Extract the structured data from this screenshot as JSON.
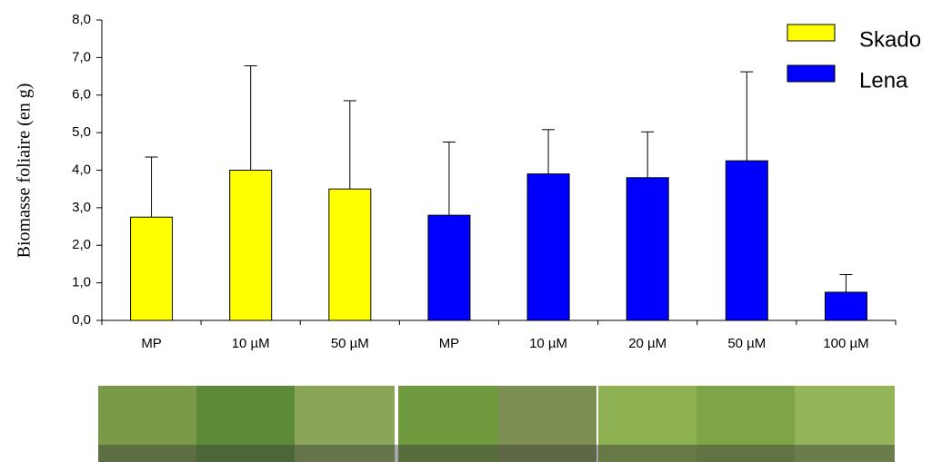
{
  "chart_data": {
    "type": "bar",
    "y_label": "Biomasse foliaire (en g)",
    "categories": [
      "MP",
      "10 µM",
      "50 µM",
      "MP",
      "10 µM",
      "20 µM",
      "50 µM",
      "100 µM"
    ],
    "series": [
      {
        "name": "Skado",
        "color": "#ffff00",
        "values": [
          2.75,
          4.0,
          3.5,
          null,
          null,
          null,
          null,
          null
        ],
        "error": [
          1.6,
          2.78,
          2.35,
          null,
          null,
          null,
          null,
          null
        ]
      },
      {
        "name": "Lena",
        "color": "#0000ff",
        "values": [
          null,
          null,
          null,
          2.8,
          3.9,
          3.8,
          4.25,
          0.75
        ],
        "error": [
          null,
          null,
          null,
          1.95,
          1.18,
          1.22,
          2.37,
          0.47
        ]
      }
    ],
    "ylim": [
      0,
      8
    ],
    "yticks": [
      {
        "value": 0,
        "label": "0,0"
      },
      {
        "value": 1,
        "label": "1,0"
      },
      {
        "value": 2,
        "label": "2,0"
      },
      {
        "value": 3,
        "label": "3,0"
      },
      {
        "value": 4,
        "label": "4,0"
      },
      {
        "value": 5,
        "label": "5,0"
      },
      {
        "value": 6,
        "label": "6,0"
      },
      {
        "value": 7,
        "label": "7,0"
      },
      {
        "value": 8,
        "label": "8,0"
      }
    ],
    "grid": false
  }
}
